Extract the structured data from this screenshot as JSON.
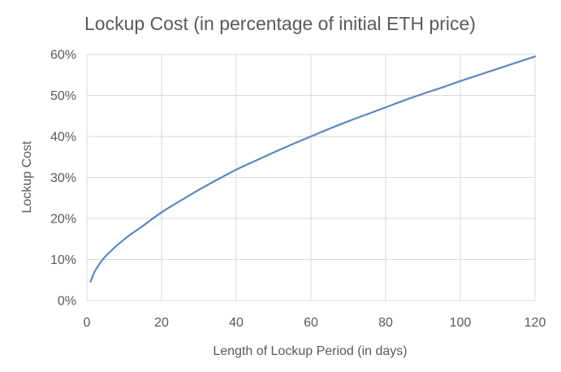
{
  "chart_data": {
    "type": "line",
    "title": "Lockup Cost (in percentage of initial ETH price)",
    "xlabel": "Length of Lockup Period (in days)",
    "ylabel": "Lockup Cost",
    "xlim": [
      0,
      120
    ],
    "ylim": [
      0,
      60
    ],
    "x_ticks": [
      0,
      20,
      40,
      60,
      80,
      100,
      120
    ],
    "x_tick_labels": [
      "0",
      "20",
      "40",
      "60",
      "80",
      "100",
      "120"
    ],
    "y_ticks": [
      0,
      10,
      20,
      30,
      40,
      50,
      60
    ],
    "y_tick_labels": [
      "0%",
      "10%",
      "20%",
      "30%",
      "40%",
      "50%",
      "60%"
    ],
    "y_unit": "%",
    "grid": true,
    "legend": "none",
    "series": [
      {
        "color": "#5b87c1",
        "points": [
          [
            1,
            4.6
          ],
          [
            2,
            6.9
          ],
          [
            3,
            8.4
          ],
          [
            4,
            9.7
          ],
          [
            5,
            10.8
          ],
          [
            6,
            11.7
          ],
          [
            8,
            13.4
          ],
          [
            10,
            14.9
          ],
          [
            12,
            16.3
          ],
          [
            15,
            18.2
          ],
          [
            20,
            21.5
          ],
          [
            25,
            24.3
          ],
          [
            30,
            27.0
          ],
          [
            35,
            29.5
          ],
          [
            40,
            31.9
          ],
          [
            45,
            34.0
          ],
          [
            50,
            36.1
          ],
          [
            55,
            38.1
          ],
          [
            60,
            40.0
          ],
          [
            65,
            41.9
          ],
          [
            70,
            43.7
          ],
          [
            75,
            45.4
          ],
          [
            80,
            47.1
          ],
          [
            85,
            48.8
          ],
          [
            90,
            50.4
          ],
          [
            95,
            51.9
          ],
          [
            100,
            53.5
          ],
          [
            105,
            55.0
          ],
          [
            110,
            56.5
          ],
          [
            115,
            58.0
          ],
          [
            120,
            59.5
          ]
        ]
      }
    ]
  }
}
